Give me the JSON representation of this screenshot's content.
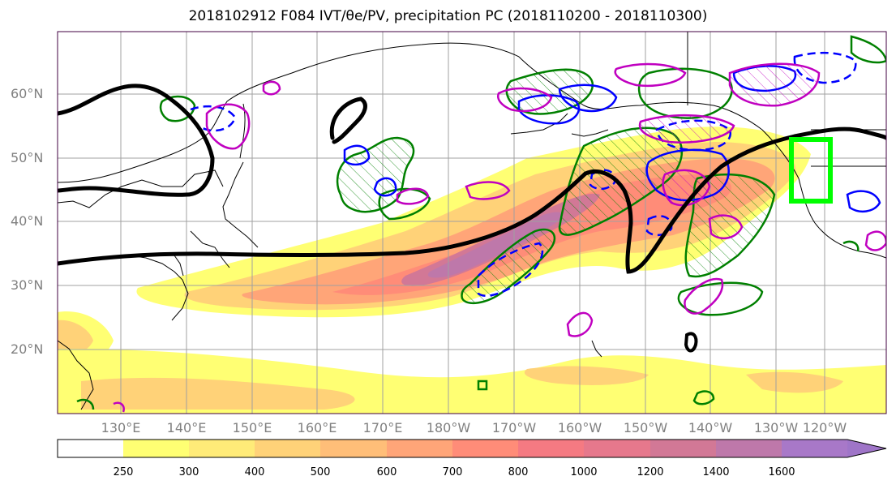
{
  "title": "2018102912 F084 IVT/θe/PV, precipitation PC (2018110200 - 2018110300)",
  "latitude_labels": [
    "60°N",
    "50°N",
    "40°N",
    "30°N",
    "20°N"
  ],
  "longitude_labels": [
    "130°E",
    "140°E",
    "150°E",
    "160°E",
    "170°E",
    "180°W",
    "170°W",
    "160°W",
    "150°W",
    "140°W",
    "130°W",
    "120°W"
  ],
  "colorbar": {
    "levels": [
      "250",
      "300",
      "400",
      "500",
      "600",
      "700",
      "800",
      "1000",
      "1200",
      "1400",
      "1600"
    ],
    "colors": [
      "#ffff73",
      "#ffeb78",
      "#ffd278",
      "#ffbe78",
      "#ffa578",
      "#ff8c78",
      "#f57a82",
      "#e6788c",
      "#d27896",
      "#be78aa",
      "#a878c8"
    ]
  },
  "colors": {
    "ivt_fill_low": "#ffff73",
    "ivt_fill_high": "#be78aa",
    "theta_e_contour": "#000000",
    "pv_positive": "#008000",
    "pv_negative": "#0000ff",
    "precip_contour": "#c000c0",
    "target_box": "#00ff00",
    "gridline": "#a0a0a0",
    "coastline": "#000000",
    "map_frame": "#400040"
  }
}
